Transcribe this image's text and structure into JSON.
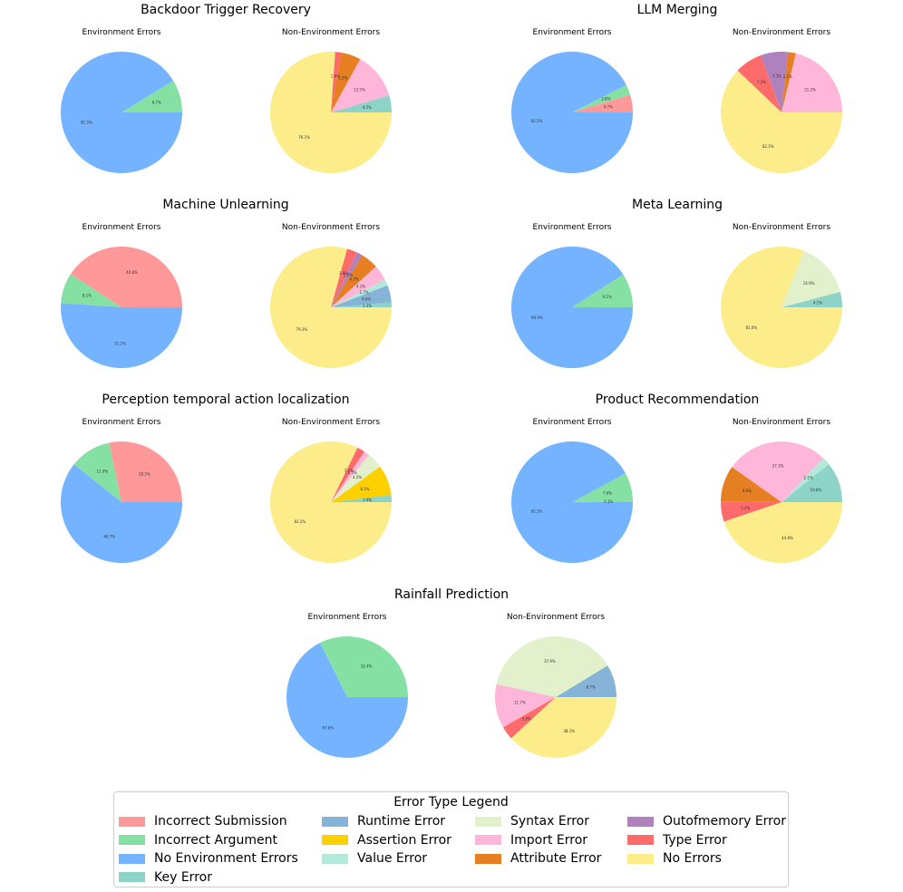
{
  "colors": {
    "Incorrect Submission": "#ff9999",
    "Incorrect Argument": "#85e0a3",
    "No Environment Errors": "#74b3ff",
    "Key Error": "#8dd3c7",
    "Runtime Error": "#85b4d8",
    "Assertion Error": "#ffd000",
    "Value Error": "#b3e9d9",
    "Syntax Error": "#e2f0cb",
    "Import Error": "#ffb6d9",
    "Attribute Error": "#e67e22",
    "Outofmemory Error": "#b082bd",
    "Type Error": "#ff6b6b",
    "No Errors": "#fdec8a"
  },
  "legend": {
    "title": "Error Type Legend",
    "items": [
      "Incorrect Submission",
      "Incorrect Argument",
      "No Environment Errors",
      "Key Error",
      "Runtime Error",
      "Assertion Error",
      "Value Error",
      "Syntax Error",
      "Import Error",
      "Attribute Error",
      "Outofmemory Error",
      "Type Error",
      "No Errors"
    ]
  },
  "chart_data": [
    {
      "type": "pie",
      "title": "Backdoor Trigger Recovery",
      "pies": [
        {
          "subtitle": "Environment Errors",
          "slices": [
            {
              "label": "Incorrect Argument",
              "value": 8.7
            },
            {
              "label": "No Environment Errors",
              "value": 91.3
            }
          ]
        },
        {
          "subtitle": "Non-Environment Errors",
          "slices": [
            {
              "label": "Key Error",
              "value": 4.5
            },
            {
              "label": "Import Error",
              "value": 12.5
            },
            {
              "label": "Attribute Error",
              "value": 5.3
            },
            {
              "label": "Type Error",
              "value": 1.6
            },
            {
              "label": "No Errors",
              "value": 76.1
            }
          ]
        }
      ]
    },
    {
      "type": "pie",
      "title": "LLM Merging",
      "pies": [
        {
          "subtitle": "Environment Errors",
          "slices": [
            {
              "label": "Incorrect Submission",
              "value": 4.7
            },
            {
              "label": "Incorrect Argument",
              "value": 2.8
            },
            {
              "label": "No Environment Errors",
              "value": 92.5
            }
          ]
        },
        {
          "subtitle": "Non-Environment Errors",
          "slices": [
            {
              "label": "Import Error",
              "value": 21.2
            },
            {
              "label": "Attribute Error",
              "value": 2.1
            },
            {
              "label": "Outofmemory Error",
              "value": 7.3
            },
            {
              "label": "Type Error",
              "value": 7.3
            },
            {
              "label": "No Errors",
              "value": 62.1
            }
          ]
        }
      ]
    },
    {
      "type": "pie",
      "title": "Machine Unlearning",
      "pies": [
        {
          "subtitle": "Environment Errors",
          "slices": [
            {
              "label": "Incorrect Submission",
              "value": 40.8
            },
            {
              "label": "Incorrect Argument",
              "value": 8.1
            },
            {
              "label": "No Environment Errors",
              "value": 51.1
            }
          ]
        },
        {
          "subtitle": "Non-Environment Errors",
          "slices": [
            {
              "label": "Key Error",
              "value": 1.3
            },
            {
              "label": "Runtime Error",
              "value": 4.6
            },
            {
              "label": "Value Error",
              "value": 1.7
            },
            {
              "label": "Import Error",
              "value": 4.1
            },
            {
              "label": "Attribute Error",
              "value": 4.7
            },
            {
              "label": "Outofmemory Error",
              "value": 1.5
            },
            {
              "label": "Type Error",
              "value": 2.8
            },
            {
              "label": "No Errors",
              "value": 79.3
            }
          ]
        }
      ]
    },
    {
      "type": "pie",
      "title": "Meta Learning",
      "pies": [
        {
          "subtitle": "Environment Errors",
          "slices": [
            {
              "label": "Incorrect Argument",
              "value": 9.1
            },
            {
              "label": "No Environment Errors",
              "value": 90.9
            }
          ]
        },
        {
          "subtitle": "Non-Environment Errors",
          "slices": [
            {
              "label": "Key Error",
              "value": 4.1
            },
            {
              "label": "Syntax Error",
              "value": 14.9
            },
            {
              "label": "No Errors",
              "value": 81.0
            }
          ]
        }
      ]
    },
    {
      "type": "pie",
      "title": "Perception temporal action localization",
      "pies": [
        {
          "subtitle": "Environment Errors",
          "slices": [
            {
              "label": "Incorrect Submission",
              "value": 28.3
            },
            {
              "label": "Incorrect Argument",
              "value": 11.0
            },
            {
              "label": "No Environment Errors",
              "value": 60.7
            }
          ]
        },
        {
          "subtitle": "Non-Environment Errors",
          "slices": [
            {
              "label": "Key Error",
              "value": 1.9
            },
            {
              "label": "Assertion Error",
              "value": 8.1
            },
            {
              "label": "Syntax Error",
              "value": 4.2
            },
            {
              "label": "Import Error",
              "value": 1.5
            },
            {
              "label": "Type Error",
              "value": 2.1
            },
            {
              "label": "No Errors",
              "value": 82.2
            }
          ]
        }
      ]
    },
    {
      "type": "pie",
      "title": "Product Recommendation",
      "pies": [
        {
          "subtitle": "Environment Errors",
          "slices": [
            {
              "label": "Incorrect Submission",
              "value": 0.3
            },
            {
              "label": "Incorrect Argument",
              "value": 7.6
            },
            {
              "label": "No Environment Errors",
              "value": 92.1
            }
          ]
        },
        {
          "subtitle": "Non-Environment Errors",
          "slices": [
            {
              "label": "Key Error",
              "value": 10.8
            },
            {
              "label": "Value Error",
              "value": 2.1
            },
            {
              "label": "Import Error",
              "value": 27.3
            },
            {
              "label": "Attribute Error",
              "value": 9.6
            },
            {
              "label": "Type Error",
              "value": 5.4
            },
            {
              "label": "No Errors",
              "value": 44.8
            }
          ]
        }
      ]
    },
    {
      "type": "pie",
      "title": "Rainfall Prediction",
      "pies": [
        {
          "subtitle": "Environment Errors",
          "slices": [
            {
              "label": "Incorrect Argument",
              "value": 32.4
            },
            {
              "label": "No Environment Errors",
              "value": 67.6
            }
          ]
        },
        {
          "subtitle": "Non-Environment Errors",
          "slices": [
            {
              "label": "Runtime Error",
              "value": 8.7
            },
            {
              "label": "Syntax Error",
              "value": 37.9
            },
            {
              "label": "Import Error",
              "value": 11.7
            },
            {
              "label": "Type Error",
              "value": 3.6
            },
            {
              "label": "No Errors",
              "value": 38.1
            }
          ]
        }
      ]
    }
  ]
}
